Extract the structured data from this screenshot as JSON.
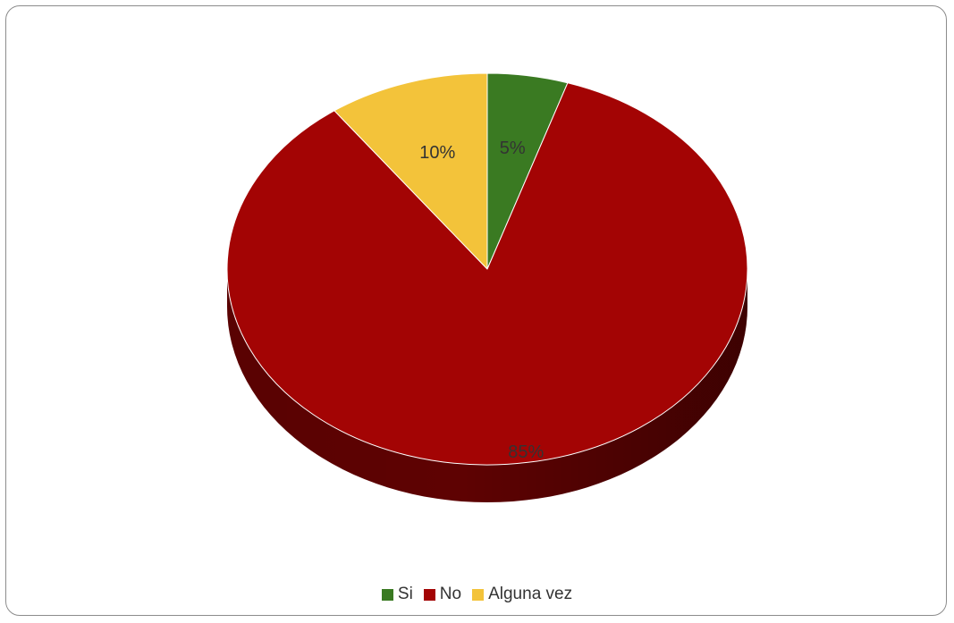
{
  "chart_data": {
    "type": "pie",
    "title": "",
    "categories": [
      "Si",
      "No",
      "Alguna vez"
    ],
    "values": [
      5,
      85,
      10
    ],
    "data_labels": [
      "5%",
      "85%",
      "10%"
    ],
    "colors": [
      "#3a7a22",
      "#a30404",
      "#f3c33a"
    ],
    "side_colors": [
      "#234e14",
      "#5e0202",
      "#a88420"
    ],
    "legend_position": "bottom",
    "three_d": true
  }
}
